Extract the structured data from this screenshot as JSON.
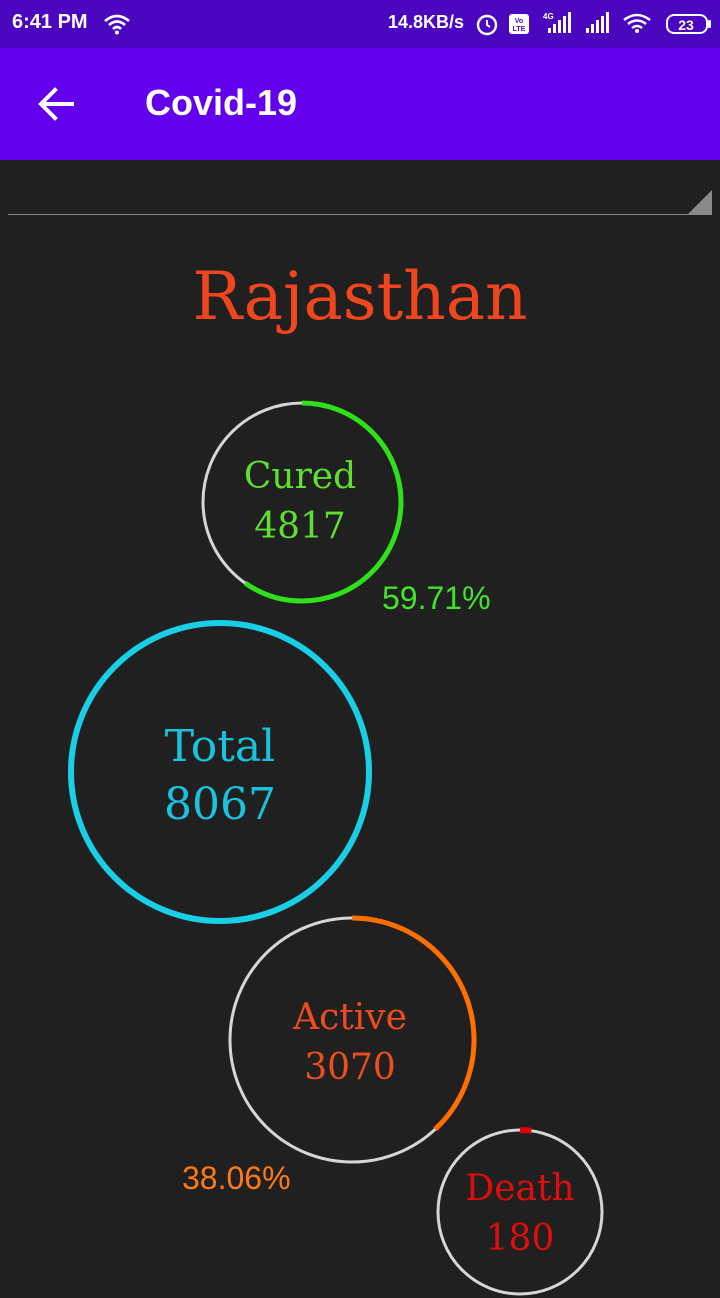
{
  "status_bar": {
    "time": "6:41 PM",
    "network_speed": "14.8KB/s",
    "battery": "23",
    "icons": [
      "wifi-icon",
      "alarm-icon",
      "volte-icon",
      "4g-signal-icon",
      "signal-icon",
      "wifi-icon",
      "battery-icon"
    ]
  },
  "app_bar": {
    "title": "Covid-19",
    "back_icon": "arrow-left-icon"
  },
  "state_selector": {
    "value": ""
  },
  "state_name": "Rajasthan",
  "stats": {
    "cured": {
      "label": "Cured",
      "value": "4817",
      "percent": "59.71%",
      "fraction": 0.5971,
      "color": "#2fe01a"
    },
    "total": {
      "label": "Total",
      "value": "8067",
      "color": "#19cfe6"
    },
    "active": {
      "label": "Active",
      "value": "3070",
      "percent": "38.06%",
      "fraction": 0.3806,
      "color": "#ff6f00"
    },
    "death": {
      "label": "Death",
      "value": "180",
      "fraction": 0.0223,
      "color": "#e00000"
    }
  },
  "colors": {
    "status_bar": "#4a07bf",
    "app_bar": "#6200ee",
    "background": "#212021",
    "state_name": "#f0461e",
    "ring_track": "#d6d6d6",
    "active_text": "#ee4d1d"
  }
}
